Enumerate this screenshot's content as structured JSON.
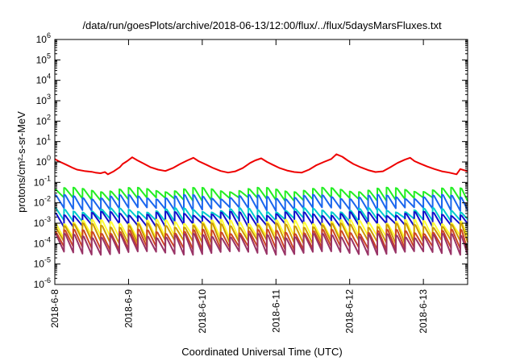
{
  "chart_data": {
    "type": "line",
    "title": "/data/run/goesPlots/archive/2018-06-13/12:00/flux/../flux/5daysMarsFluxes.txt",
    "xlabel": "Coordinated Universal Time (UTC)",
    "ylabel": "protons/cm²-s-sr-MeV",
    "yscale": "log",
    "ylim": [
      1e-06,
      1000000.0
    ],
    "xlim": [
      0,
      5.6
    ],
    "grid": false,
    "legend": "none",
    "x_ticks": [
      {
        "x": 0,
        "label": "2018-6-8"
      },
      {
        "x": 1,
        "label": "2018-6-9"
      },
      {
        "x": 2,
        "label": "2018-6-10"
      },
      {
        "x": 3,
        "label": "2018-6-11"
      },
      {
        "x": 4,
        "label": "2018-6-12"
      },
      {
        "x": 5,
        "label": "2018-6-13"
      }
    ],
    "y_ticks": [
      {
        "exp": "-6",
        "value": 1e-06
      },
      {
        "exp": "-5",
        "value": 1e-05
      },
      {
        "exp": "-4",
        "value": 0.0001
      },
      {
        "exp": "-3",
        "value": 0.001
      },
      {
        "exp": "-2",
        "value": 0.01
      },
      {
        "exp": "-1",
        "value": 0.1
      },
      {
        "exp": "0",
        "value": 1
      },
      {
        "exp": "1",
        "value": 10.0
      },
      {
        "exp": "2",
        "value": 100.0
      },
      {
        "exp": "3",
        "value": 1000.0
      },
      {
        "exp": "4",
        "value": 10000.0
      },
      {
        "exp": "5",
        "value": 100000.0
      },
      {
        "exp": "6",
        "value": 1000000.0
      }
    ],
    "series": [
      {
        "color": "#ee0000",
        "x": [
          0,
          0.05,
          0.15,
          0.25,
          0.3,
          0.4,
          0.5,
          0.55,
          0.62,
          0.68,
          0.72,
          0.8,
          0.88,
          0.92,
          0.98,
          1.05,
          1.12,
          1.2,
          1.3,
          1.4,
          1.5,
          1.6,
          1.7,
          1.8,
          1.88,
          1.95,
          2.05,
          2.15,
          2.25,
          2.35,
          2.45,
          2.55,
          2.65,
          2.72,
          2.8,
          2.88,
          2.95,
          3.05,
          3.15,
          3.25,
          3.35,
          3.45,
          3.55,
          3.65,
          3.75,
          3.82,
          3.9,
          3.97,
          4.05,
          4.15,
          4.25,
          4.35,
          4.45,
          4.55,
          4.65,
          4.75,
          4.82,
          4.88,
          4.95,
          5.05,
          5.15,
          5.25,
          5.35,
          5.45,
          5.5,
          5.6
        ],
        "y": [
          1.4,
          1.1,
          0.75,
          0.5,
          0.42,
          0.36,
          0.33,
          0.3,
          0.28,
          0.32,
          0.25,
          0.35,
          0.55,
          0.8,
          1.1,
          1.7,
          1.2,
          0.85,
          0.55,
          0.42,
          0.36,
          0.5,
          0.8,
          1.2,
          1.6,
          1.1,
          0.75,
          0.5,
          0.36,
          0.3,
          0.35,
          0.5,
          0.9,
          1.2,
          1.5,
          1.0,
          0.75,
          0.5,
          0.38,
          0.32,
          0.3,
          0.42,
          0.7,
          1.0,
          1.4,
          2.4,
          1.8,
          1.2,
          0.8,
          0.55,
          0.4,
          0.32,
          0.35,
          0.55,
          0.9,
          1.3,
          1.6,
          1.1,
          0.85,
          0.6,
          0.45,
          0.35,
          0.3,
          0.25,
          0.45,
          0.35
        ]
      }
    ],
    "sawtooth_bands": [
      {
        "color": "#22ee22",
        "low": 0.015,
        "high": 0.045
      },
      {
        "color": "#1a66ee",
        "low": 0.005,
        "high": 0.02
      },
      {
        "color": "#00cccc",
        "low": 0.0015,
        "high": 0.0045
      },
      {
        "color": "#1111cc",
        "low": 0.0008,
        "high": 0.003
      },
      {
        "color": "#ffff33",
        "low": 0.0002,
        "high": 0.0012
      },
      {
        "color": "#cc9900",
        "low": 0.00012,
        "high": 0.0008
      },
      {
        "color": "#cc4422",
        "low": 6e-05,
        "high": 0.0004
      },
      {
        "color": "#993366",
        "low": 3.5e-05,
        "high": 0.00025
      }
    ],
    "sawtooth_period_days": 0.125
  }
}
